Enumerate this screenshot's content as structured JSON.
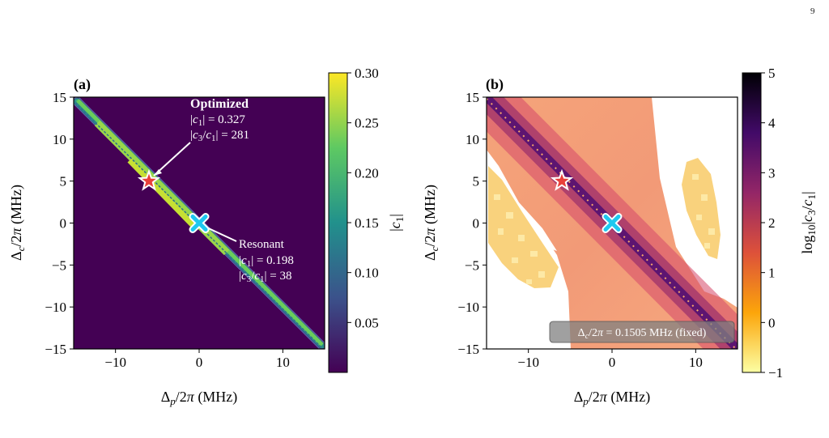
{
  "page_number": "9",
  "colors": {
    "optimized_marker": "#e8403a",
    "resonant_marker": "#1ec8f0",
    "colorbar_a": [
      "#440154",
      "#3b528b",
      "#21918c",
      "#5ec962",
      "#fde725"
    ],
    "colorbar_b": [
      "#fcffa4",
      "#fca50a",
      "#dd513a",
      "#932667",
      "#420a68",
      "#000004"
    ]
  },
  "chart_data": [
    {
      "type": "heatmap",
      "panel_label": "(a)",
      "xlabel": "Δp/2π (MHz)",
      "ylabel": "Δc/2π (MHz)",
      "xlim": [
        -15,
        15
      ],
      "ylim": [
        -15,
        15
      ],
      "xticks": [
        -10,
        0,
        10
      ],
      "yticks": [
        -15,
        -10,
        -5,
        0,
        5,
        10,
        15
      ],
      "colorbar": {
        "label": "|c1|",
        "range": [
          0.0,
          0.3
        ],
        "ticks": [
          "0.05",
          "0.10",
          "0.15",
          "0.20",
          "0.25",
          "0.30"
        ]
      },
      "background_value": 0,
      "band": {
        "along": "Δc = −Δp",
        "peak_value": 0.3
      },
      "markers": [
        {
          "name": "Optimized",
          "symbol": "star",
          "x": -6,
          "y": 5,
          "c1": 0.327,
          "c3_over_c1": 281
        },
        {
          "name": "Resonant",
          "symbol": "x",
          "x": 0,
          "y": 0,
          "c1": 0.198,
          "c3_over_c1": 38
        }
      ],
      "annotations": {
        "optimized": {
          "title": "Optimized",
          "line1": "|c1| = 0.327",
          "line2": "|c3/c1| = 281"
        },
        "resonant": {
          "title": "Resonant",
          "line1": "|c1| = 0.198",
          "line2": "|c3/c1| = 38"
        }
      }
    },
    {
      "type": "heatmap",
      "panel_label": "(b)",
      "xlabel": "Δp/2π (MHz)",
      "ylabel": "Δc/2π (MHz)",
      "xlim": [
        -15,
        15
      ],
      "ylim": [
        -15,
        15
      ],
      "xticks": [
        -10,
        0,
        10
      ],
      "yticks": [
        -15,
        -10,
        -5,
        0,
        5,
        10,
        15
      ],
      "colorbar": {
        "label": "log10|c3/c1|",
        "range": [
          -1,
          5
        ],
        "ticks": [
          "−1",
          "0",
          "1",
          "2",
          "3",
          "4",
          "5"
        ]
      },
      "ridge": {
        "along": "Δc = −Δp",
        "peak_value": 3.5
      },
      "markers": [
        {
          "name": "Optimized",
          "symbol": "star",
          "x": -6,
          "y": 5
        },
        {
          "name": "Resonant",
          "symbol": "x",
          "x": 0,
          "y": 0
        }
      ],
      "fixed_note": "Δc/2π = 0.1505 MHz (fixed)"
    }
  ]
}
